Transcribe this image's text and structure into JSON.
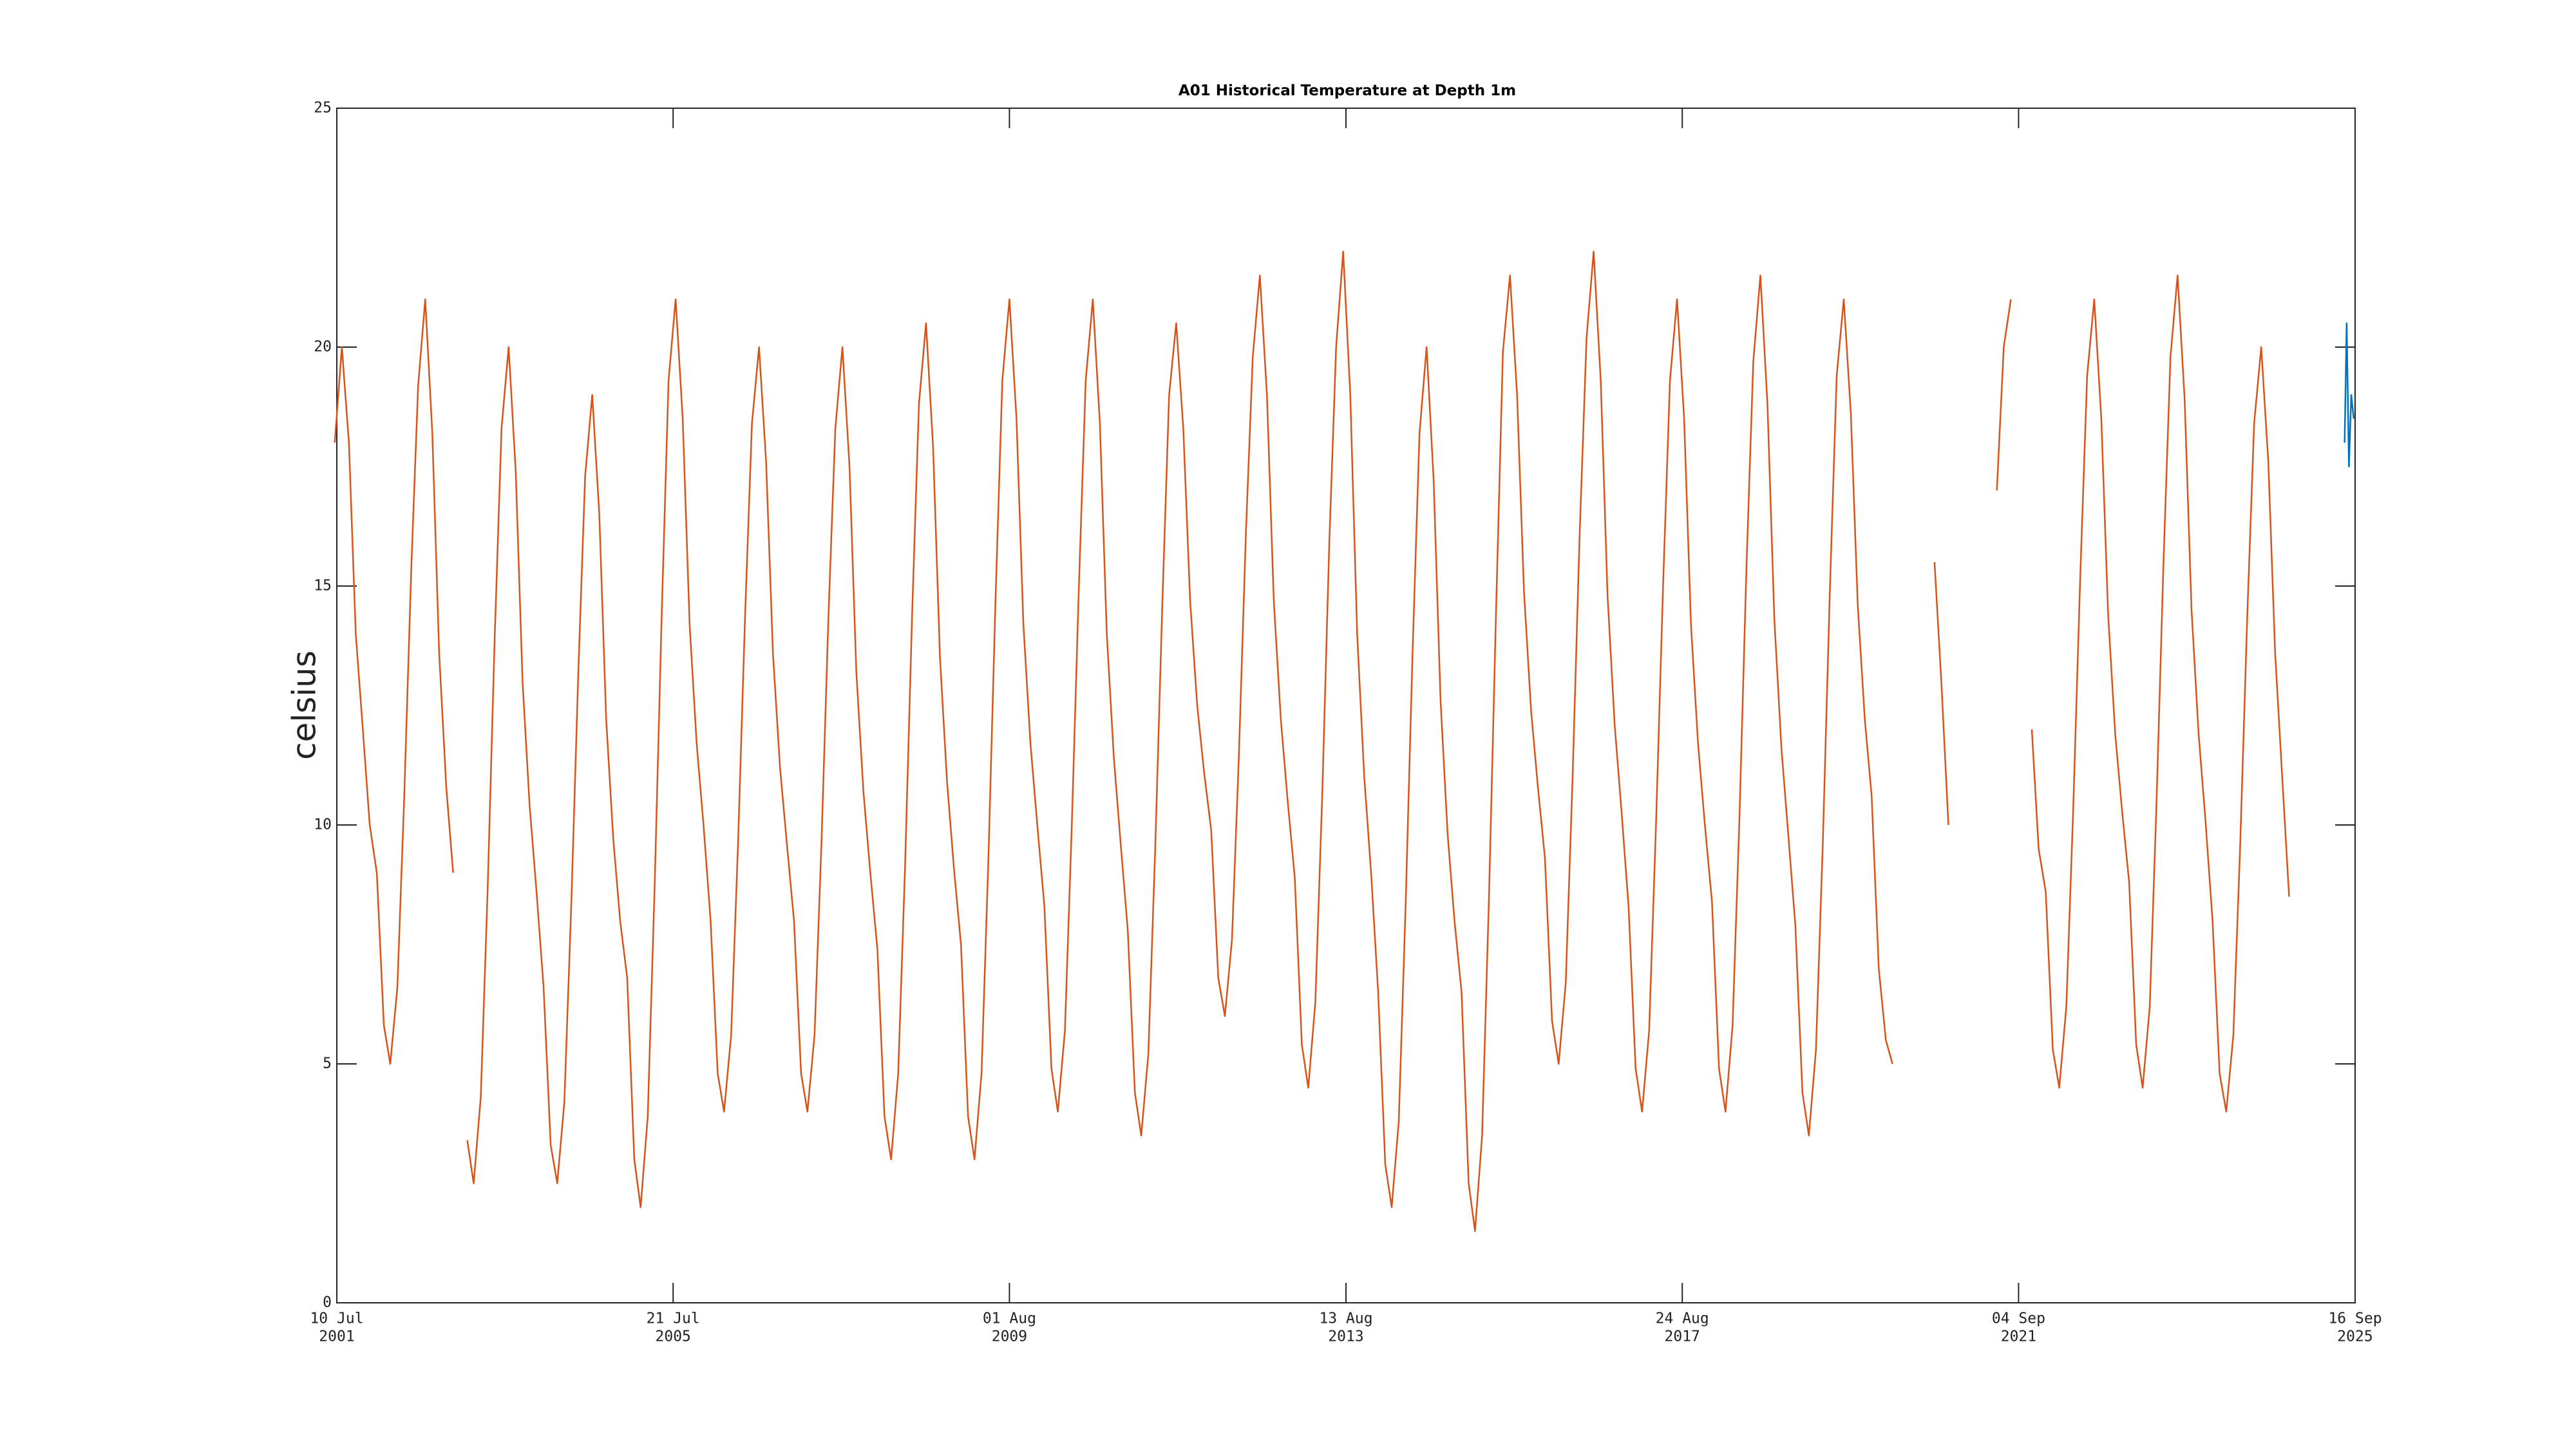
{
  "chart_data": {
    "type": "line",
    "title": "A01 Historical Temperature at Depth 1m",
    "ylabel": "celsius",
    "xlim": [
      "2001-07-10",
      "2025-09-16"
    ],
    "xticks": [
      {
        "value": "2001-07-10",
        "label": [
          "10 Jul",
          "2001"
        ]
      },
      {
        "value": "2005-07-21",
        "label": [
          "21 Jul",
          "2005"
        ]
      },
      {
        "value": "2009-08-01",
        "label": [
          "01 Aug",
          "2009"
        ]
      },
      {
        "value": "2013-08-13",
        "label": [
          "13 Aug",
          "2013"
        ]
      },
      {
        "value": "2017-08-24",
        "label": [
          "24 Aug",
          "2017"
        ]
      },
      {
        "value": "2021-09-04",
        "label": [
          "04 Sep",
          "2021"
        ]
      },
      {
        "value": "2025-09-16",
        "label": [
          "16 Sep",
          "2025"
        ]
      }
    ],
    "ylim": [
      0,
      25
    ],
    "yticks": [
      0,
      5,
      10,
      15,
      20,
      25
    ],
    "grid": false,
    "series": [
      {
        "color": "#d95319",
        "x": [
          "2001-07",
          "2001-08",
          "2001-09",
          "2001-10",
          "2001-11",
          "2001-12",
          "2002-01",
          "2002-02",
          "2002-03",
          "2002-04",
          "2002-05",
          "2002-06",
          "2002-07",
          "2002-08",
          "2002-09",
          "2002-10",
          "2002-11",
          "2002-12",
          "2003-01",
          "2003-02",
          "2003-03",
          "2003-04",
          "2003-05",
          "2003-06",
          "2003-07",
          "2003-08",
          "2003-09",
          "2003-10",
          "2003-11",
          "2003-12",
          "2004-01",
          "2004-02",
          "2004-03",
          "2004-04",
          "2004-05",
          "2004-06",
          "2004-07",
          "2004-08",
          "2004-09",
          "2004-10",
          "2004-11",
          "2004-12",
          "2005-01",
          "2005-02",
          "2005-03",
          "2005-04",
          "2005-05",
          "2005-06",
          "2005-07",
          "2005-08",
          "2005-09",
          "2005-10",
          "2005-11",
          "2005-12",
          "2006-01",
          "2006-02",
          "2006-03",
          "2006-04",
          "2006-05",
          "2006-06",
          "2006-07",
          "2006-08",
          "2006-09",
          "2006-10",
          "2006-11",
          "2006-12",
          "2007-01",
          "2007-02",
          "2007-03",
          "2007-04",
          "2007-05",
          "2007-06",
          "2007-07",
          "2007-08",
          "2007-09",
          "2007-10",
          "2007-11",
          "2007-12",
          "2008-01",
          "2008-02",
          "2008-03",
          "2008-04",
          "2008-05",
          "2008-06",
          "2008-07",
          "2008-08",
          "2008-09",
          "2008-10",
          "2008-11",
          "2008-12",
          "2009-01",
          "2009-02",
          "2009-03",
          "2009-04",
          "2009-05",
          "2009-06",
          "2009-07",
          "2009-08",
          "2009-09",
          "2009-10",
          "2009-11",
          "2009-12",
          "2010-01",
          "2010-02",
          "2010-03",
          "2010-04",
          "2010-05",
          "2010-06",
          "2010-07",
          "2010-08",
          "2010-09",
          "2010-10",
          "2010-11",
          "2010-12",
          "2011-01",
          "2011-02",
          "2011-03",
          "2011-04",
          "2011-05",
          "2011-06",
          "2011-07",
          "2011-08",
          "2011-09",
          "2011-10",
          "2011-11",
          "2011-12",
          "2012-01",
          "2012-02",
          "2012-03",
          "2012-04",
          "2012-05",
          "2012-06",
          "2012-07",
          "2012-08",
          "2012-09",
          "2012-10",
          "2012-11",
          "2012-12",
          "2013-01",
          "2013-02",
          "2013-03",
          "2013-04",
          "2013-05",
          "2013-06",
          "2013-07",
          "2013-08",
          "2013-09",
          "2013-10",
          "2013-11",
          "2013-12",
          "2014-01",
          "2014-02",
          "2014-03",
          "2014-04",
          "2014-05",
          "2014-06",
          "2014-07",
          "2014-08",
          "2014-09",
          "2014-10",
          "2014-11",
          "2014-12",
          "2015-01",
          "2015-02",
          "2015-03",
          "2015-04",
          "2015-05",
          "2015-06",
          "2015-07",
          "2015-08",
          "2015-09",
          "2015-10",
          "2015-11",
          "2015-12",
          "2016-01",
          "2016-02",
          "2016-03",
          "2016-04",
          "2016-05",
          "2016-06",
          "2016-07",
          "2016-08",
          "2016-09",
          "2016-10",
          "2016-11",
          "2016-12",
          "2017-01",
          "2017-02",
          "2017-03",
          "2017-04",
          "2017-05",
          "2017-06",
          "2017-07",
          "2017-08",
          "2017-09",
          "2017-10",
          "2017-11",
          "2017-12",
          "2018-01",
          "2018-02",
          "2018-03",
          "2018-04",
          "2018-05",
          "2018-06",
          "2018-07",
          "2018-08",
          "2018-09",
          "2018-10",
          "2018-11",
          "2018-12",
          "2019-01",
          "2019-02",
          "2019-03",
          "2019-04",
          "2019-05",
          "2019-06",
          "2019-07",
          "2019-08",
          "2019-09",
          "2019-10",
          "2019-11",
          "2019-12",
          "2020-01",
          "2020-02",
          "2020-03",
          "2020-04",
          "2020-05",
          "2020-06",
          "2020-07",
          "2020-08",
          "2020-09",
          "2020-10",
          "2020-11",
          "2020-12",
          "2021-01",
          "2021-02",
          "2021-03",
          "2021-04",
          "2021-05",
          "2021-06",
          "2021-07",
          "2021-08",
          "2021-09",
          "2021-10",
          "2021-11",
          "2021-12",
          "2022-01",
          "2022-02",
          "2022-03",
          "2022-04",
          "2022-05",
          "2022-06",
          "2022-07",
          "2022-08",
          "2022-09",
          "2022-10",
          "2022-11",
          "2022-12",
          "2023-01",
          "2023-02",
          "2023-03",
          "2023-04",
          "2023-05",
          "2023-06",
          "2023-07",
          "2023-08",
          "2023-09",
          "2023-10",
          "2023-11",
          "2023-12",
          "2024-01",
          "2024-02",
          "2024-03",
          "2024-04",
          "2024-05",
          "2024-06",
          "2024-07",
          "2024-08",
          "2024-09",
          "2024-10",
          "2024-11",
          "2024-12"
        ],
        "values": [
          18,
          20,
          18,
          14,
          12,
          10,
          9,
          5.8,
          5,
          6.6,
          10.6,
          15.4,
          19.2,
          21,
          18.2,
          13.6,
          10.8,
          9,
          null,
          3.4,
          2.5,
          4.3,
          8.6,
          13.9,
          18.3,
          20,
          17.4,
          13,
          10.4,
          8.6,
          6.6,
          3.3,
          2.5,
          4.2,
          8.3,
          13.2,
          17.3,
          19,
          16.5,
          12.2,
          9.7,
          8,
          6.8,
          3,
          2,
          3.9,
          8.7,
          14.4,
          19.3,
          21,
          18.5,
          14.2,
          11.7,
          10,
          8,
          4.8,
          4,
          5.6,
          9.6,
          14.4,
          18.4,
          20,
          17.6,
          13.6,
          11.2,
          9.6,
          8,
          4.8,
          4,
          5.6,
          9.6,
          14.4,
          18.3,
          20,
          17.5,
          13.2,
          10.7,
          9,
          7.4,
          3.9,
          3,
          4.8,
          9.1,
          14.4,
          18.8,
          20.5,
          17.9,
          13.5,
          10.9,
          9.1,
          7.5,
          3.9,
          3,
          4.8,
          9.3,
          14.7,
          19.3,
          21,
          18.5,
          14.2,
          11.7,
          10,
          8.3,
          4.9,
          4,
          5.7,
          10,
          15,
          19.3,
          21,
          18.4,
          14,
          11.4,
          9.6,
          7.8,
          4.4,
          3.5,
          5.2,
          9.5,
          14.6,
          19,
          20.5,
          18.3,
          14.7,
          12.5,
          11.1,
          9.9,
          6.8,
          6,
          7.6,
          11.4,
          16.1,
          19.8,
          21.5,
          19,
          14.7,
          12.2,
          10.5,
          8.9,
          5.4,
          4.5,
          6.3,
          10.6,
          15.9,
          20,
          22,
          19,
          14,
          11,
          9,
          6.5,
          2.9,
          2,
          3.8,
          8.3,
          13.7,
          18.2,
          20,
          17.2,
          12.6,
          9.8,
          8,
          6.5,
          2.5,
          1.5,
          3.5,
          8.5,
          14.5,
          19.9,
          21.5,
          19,
          14.9,
          12.4,
          10.8,
          9.3,
          5.9,
          5,
          6.7,
          11,
          16.1,
          20.2,
          22,
          19.3,
          14.8,
          12.1,
          10.3,
          8.3,
          4.9,
          4,
          5.7,
          10,
          15,
          19.3,
          21,
          18.5,
          14.2,
          11.7,
          10,
          8.4,
          4.9,
          4,
          5.8,
          10.1,
          15.4,
          19.7,
          21.5,
          18.8,
          14.3,
          11.6,
          9.8,
          7.9,
          4.4,
          3.5,
          5.3,
          9.6,
          14.9,
          19.4,
          21,
          18.6,
          14.6,
          12.2,
          10.6,
          7,
          5.5,
          5,
          null,
          null,
          null,
          null,
          null,
          15.5,
          13,
          10,
          null,
          null,
          null,
          null,
          null,
          null,
          17,
          20,
          21,
          null,
          null,
          12,
          9.5,
          8.6,
          5.3,
          4.5,
          6.2,
          10.3,
          15.2,
          19.4,
          21,
          18.5,
          14.4,
          11.9,
          10.3,
          8.8,
          5.4,
          4.5,
          6.2,
          10.5,
          15.6,
          19.8,
          21.5,
          18.9,
          14.5,
          11.9,
          10.1,
          8,
          4.8,
          4,
          5.6,
          9.6,
          14.4,
          18.4,
          20,
          17.6,
          13.6,
          11,
          8.5
        ]
      },
      {
        "color": "#0072bd",
        "x": [
          "2025-08-01",
          "2025-08-10",
          "2025-08-20",
          "2025-08-30",
          "2025-09-10"
        ],
        "values": [
          18,
          20.5,
          17.5,
          19,
          18.5
        ]
      }
    ]
  }
}
